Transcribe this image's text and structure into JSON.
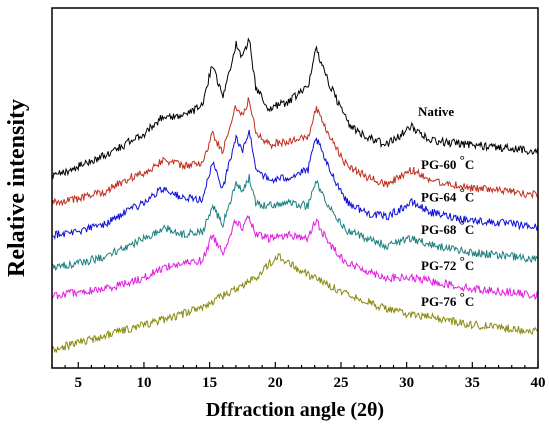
{
  "chart_data": {
    "type": "line",
    "title": "",
    "xlabel": "Dffraction angle (2θ)",
    "ylabel": "Relative intensity",
    "xlim": [
      3,
      40
    ],
    "ylim": [
      0,
      1
    ],
    "y_ticks_shown": false,
    "x_ticks": [
      5,
      10,
      15,
      20,
      25,
      30,
      35,
      40
    ],
    "grid": false,
    "legend": "labels placed beside each curve on the right",
    "series": [
      {
        "name": "Native",
        "color": "#000000",
        "label_parts": [
          "Native"
        ],
        "x": [
          3,
          5,
          7,
          9,
          10,
          11.5,
          13,
          14.5,
          15.2,
          16,
          17,
          17.5,
          18,
          18.5,
          19.5,
          21,
          22.5,
          23.1,
          24,
          25.5,
          27,
          28.5,
          30.4,
          32,
          35,
          38,
          40
        ],
        "y": [
          0.53,
          0.56,
          0.59,
          0.63,
          0.65,
          0.7,
          0.7,
          0.73,
          0.85,
          0.75,
          0.9,
          0.86,
          0.92,
          0.78,
          0.72,
          0.74,
          0.78,
          0.89,
          0.8,
          0.68,
          0.64,
          0.62,
          0.67,
          0.63,
          0.62,
          0.61,
          0.6
        ]
      },
      {
        "name": "PG-60 °C",
        "color": "#c03020",
        "label_parts": [
          "PG-60",
          "°",
          "C"
        ],
        "x": [
          3,
          5,
          7,
          9,
          10,
          11.5,
          13,
          14.5,
          15.2,
          16,
          17,
          17.5,
          18,
          18.5,
          19.5,
          21,
          22.5,
          23.1,
          24,
          25.5,
          27,
          28.5,
          30.4,
          32,
          35,
          38,
          40
        ],
        "y": [
          0.46,
          0.47,
          0.49,
          0.53,
          0.54,
          0.58,
          0.56,
          0.57,
          0.65,
          0.6,
          0.73,
          0.7,
          0.75,
          0.66,
          0.62,
          0.63,
          0.64,
          0.72,
          0.65,
          0.56,
          0.53,
          0.51,
          0.55,
          0.52,
          0.5,
          0.49,
          0.48
        ]
      },
      {
        "name": "PG-64 °C",
        "color": "#1010d8",
        "label_parts": [
          "PG-64",
          "°",
          "C"
        ],
        "x": [
          3,
          5,
          7,
          9,
          10,
          11.5,
          13,
          14.5,
          15.2,
          16,
          17,
          17.5,
          18,
          18.5,
          19.5,
          21,
          22.5,
          23.1,
          24,
          25.5,
          27,
          28.5,
          30.4,
          32,
          35,
          38,
          40
        ],
        "y": [
          0.37,
          0.38,
          0.4,
          0.44,
          0.46,
          0.5,
          0.47,
          0.47,
          0.57,
          0.5,
          0.64,
          0.6,
          0.66,
          0.56,
          0.52,
          0.53,
          0.55,
          0.64,
          0.56,
          0.46,
          0.43,
          0.42,
          0.46,
          0.43,
          0.41,
          0.4,
          0.39
        ]
      },
      {
        "name": "PG-68 °C",
        "color": "#208080",
        "label_parts": [
          "PG-68",
          "°",
          "C"
        ],
        "x": [
          3,
          5,
          7,
          9,
          10,
          11.5,
          13,
          14.5,
          15.2,
          16,
          17,
          17.5,
          18,
          18.5,
          19.5,
          21,
          22.5,
          23.1,
          24,
          25.5,
          27,
          28.5,
          30.4,
          32,
          35,
          38,
          40
        ],
        "y": [
          0.28,
          0.29,
          0.31,
          0.34,
          0.36,
          0.39,
          0.37,
          0.38,
          0.45,
          0.4,
          0.51,
          0.49,
          0.53,
          0.46,
          0.45,
          0.46,
          0.45,
          0.52,
          0.45,
          0.38,
          0.36,
          0.34,
          0.36,
          0.34,
          0.32,
          0.31,
          0.3
        ]
      },
      {
        "name": "PG-72 °C",
        "color": "#e020e0",
        "label_parts": [
          "PG-72",
          "°",
          "C"
        ],
        "x": [
          3,
          5,
          7,
          9,
          10,
          11.5,
          13,
          14.5,
          15.2,
          16,
          17,
          17.5,
          18,
          18.5,
          19.5,
          21,
          22.5,
          23.1,
          24,
          25.5,
          27,
          28.5,
          30.4,
          32,
          35,
          38,
          40
        ],
        "y": [
          0.2,
          0.21,
          0.22,
          0.24,
          0.25,
          0.28,
          0.29,
          0.3,
          0.37,
          0.32,
          0.41,
          0.39,
          0.42,
          0.37,
          0.36,
          0.37,
          0.36,
          0.41,
          0.35,
          0.29,
          0.27,
          0.25,
          0.25,
          0.24,
          0.22,
          0.21,
          0.2
        ]
      },
      {
        "name": "PG-76 °C",
        "color": "#8a8a10",
        "label_parts": [
          "PG-76",
          "°",
          "C"
        ],
        "x": [
          3,
          5,
          7,
          9,
          11,
          13,
          15,
          17,
          18.5,
          19.5,
          20.2,
          21,
          22.5,
          24,
          26,
          28,
          30,
          32,
          35,
          38,
          40
        ],
        "y": [
          0.05,
          0.07,
          0.09,
          0.11,
          0.13,
          0.15,
          0.18,
          0.22,
          0.25,
          0.29,
          0.31,
          0.29,
          0.26,
          0.23,
          0.2,
          0.17,
          0.15,
          0.14,
          0.12,
          0.11,
          0.1
        ]
      }
    ]
  }
}
